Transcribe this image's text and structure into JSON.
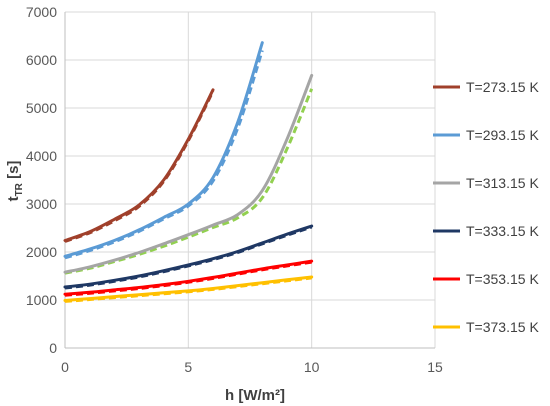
{
  "chart_data": {
    "type": "line",
    "title": "",
    "xlabel": "h [W/m²]",
    "ylabel": {
      "main": "t",
      "sub": "TR",
      "unit": " [s]"
    },
    "xlim": [
      0,
      15
    ],
    "ylim": [
      0,
      7000
    ],
    "x_ticks": [
      0,
      5,
      10,
      15
    ],
    "y_ticks": [
      0,
      1000,
      2000,
      3000,
      4000,
      5000,
      6000,
      7000
    ],
    "grid": "horizontal",
    "legend_position": "right",
    "series": [
      {
        "name": "T=273.15 K",
        "color": "#A0402B",
        "solid": [
          [
            0,
            2240
          ],
          [
            1,
            2420
          ],
          [
            2,
            2680
          ],
          [
            3,
            2980
          ],
          [
            4,
            3500
          ],
          [
            5,
            4350
          ],
          [
            6,
            5380
          ]
        ],
        "dashed": [
          [
            0,
            2220
          ],
          [
            1,
            2400
          ],
          [
            2,
            2650
          ],
          [
            3,
            2950
          ],
          [
            4,
            3470
          ],
          [
            5,
            4320
          ],
          [
            6,
            5350
          ]
        ]
      },
      {
        "name": "T=293.15 K",
        "color": "#5B9BD5",
        "solid": [
          [
            0,
            1910
          ],
          [
            1,
            2060
          ],
          [
            2,
            2240
          ],
          [
            3,
            2460
          ],
          [
            4,
            2720
          ],
          [
            5,
            3000
          ],
          [
            6,
            3550
          ],
          [
            7,
            4700
          ],
          [
            8,
            6360
          ]
        ],
        "dashed": [
          [
            0,
            1880
          ],
          [
            1,
            2030
          ],
          [
            2,
            2210
          ],
          [
            3,
            2430
          ],
          [
            4,
            2690
          ],
          [
            5,
            2960
          ],
          [
            6,
            3480
          ],
          [
            7,
            4580
          ],
          [
            8,
            6200
          ]
        ]
      },
      {
        "name": "T=313.15 K",
        "color": "#A5A5A5",
        "solid": [
          [
            0,
            1580
          ],
          [
            1,
            1690
          ],
          [
            2,
            1830
          ],
          [
            3,
            1990
          ],
          [
            4,
            2170
          ],
          [
            5,
            2360
          ],
          [
            6,
            2560
          ],
          [
            7,
            2780
          ],
          [
            8,
            3280
          ],
          [
            9,
            4350
          ],
          [
            10,
            5680
          ]
        ],
        "dashed_color": "#92D050",
        "dashed": [
          [
            0,
            1560
          ],
          [
            1,
            1660
          ],
          [
            2,
            1800
          ],
          [
            3,
            1950
          ],
          [
            4,
            2120
          ],
          [
            5,
            2310
          ],
          [
            6,
            2510
          ],
          [
            7,
            2710
          ],
          [
            8,
            3130
          ],
          [
            9,
            4150
          ],
          [
            10,
            5400
          ]
        ]
      },
      {
        "name": "T=333.15 K",
        "color": "#1F3864",
        "solid": [
          [
            0,
            1270
          ],
          [
            1,
            1330
          ],
          [
            2,
            1410
          ],
          [
            3,
            1500
          ],
          [
            4,
            1610
          ],
          [
            5,
            1730
          ],
          [
            6,
            1860
          ],
          [
            7,
            2010
          ],
          [
            8,
            2190
          ],
          [
            9,
            2370
          ],
          [
            10,
            2540
          ]
        ],
        "dashed": [
          [
            0,
            1250
          ],
          [
            1,
            1310
          ],
          [
            2,
            1390
          ],
          [
            3,
            1480
          ],
          [
            4,
            1590
          ],
          [
            5,
            1710
          ],
          [
            6,
            1840
          ],
          [
            7,
            1990
          ],
          [
            8,
            2170
          ],
          [
            9,
            2350
          ],
          [
            10,
            2520
          ]
        ]
      },
      {
        "name": "T=353.15 K",
        "color": "#FF0000",
        "solid": [
          [
            0,
            1120
          ],
          [
            1,
            1160
          ],
          [
            2,
            1210
          ],
          [
            3,
            1260
          ],
          [
            4,
            1320
          ],
          [
            5,
            1390
          ],
          [
            6,
            1470
          ],
          [
            7,
            1560
          ],
          [
            8,
            1650
          ],
          [
            9,
            1730
          ],
          [
            10,
            1810
          ]
        ],
        "dashed": [
          [
            0,
            1100
          ],
          [
            1,
            1140
          ],
          [
            2,
            1190
          ],
          [
            3,
            1240
          ],
          [
            4,
            1300
          ],
          [
            5,
            1370
          ],
          [
            6,
            1450
          ],
          [
            7,
            1540
          ],
          [
            8,
            1630
          ],
          [
            9,
            1710
          ],
          [
            10,
            1790
          ]
        ]
      },
      {
        "name": "T=373.15 K",
        "color": "#FFC000",
        "solid": [
          [
            0,
            990
          ],
          [
            1,
            1030
          ],
          [
            2,
            1070
          ],
          [
            3,
            1110
          ],
          [
            4,
            1150
          ],
          [
            5,
            1190
          ],
          [
            6,
            1240
          ],
          [
            7,
            1300
          ],
          [
            8,
            1360
          ],
          [
            9,
            1420
          ],
          [
            10,
            1480
          ]
        ],
        "dashed": [
          [
            0,
            970
          ],
          [
            1,
            1010
          ],
          [
            2,
            1050
          ],
          [
            3,
            1090
          ],
          [
            4,
            1130
          ],
          [
            5,
            1170
          ],
          [
            6,
            1220
          ],
          [
            7,
            1280
          ],
          [
            8,
            1340
          ],
          [
            9,
            1400
          ],
          [
            10,
            1460
          ]
        ]
      }
    ]
  }
}
